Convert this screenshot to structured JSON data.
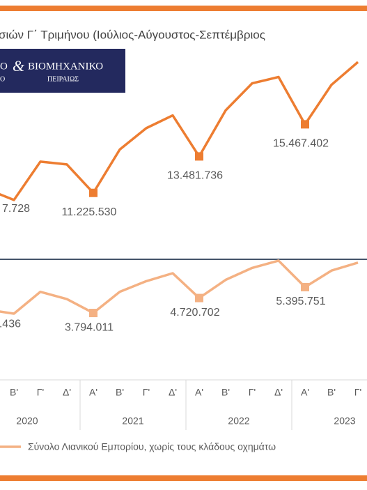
{
  "chart_data": {
    "type": "line",
    "title": "σιών Γ΄ Τριμήνου (Ιούλιος-Αύγουστος-Σεπτέμβριος",
    "logo": {
      "left1": "Ο",
      "amp": "&",
      "right1": "ΒΙΟΜΗΧΑΝΙΚΟ",
      "left2": "Ο",
      "right2": "ΠΕΙΡΑΙΩΣ"
    },
    "categories": [
      null,
      "Β'",
      "Γ'",
      "Δ'",
      "Α'",
      "Β'",
      "Γ'",
      "Δ'",
      "Α'",
      "Β'",
      "Γ'",
      "Δ'",
      "Α'",
      "Β'",
      "Γ'"
    ],
    "year_groups": [
      "2020",
      "2021",
      "2022",
      "2023"
    ],
    "series": [
      {
        "color": "#ed7d31",
        "values": [
          11447728,
          10785530,
          13161530,
          12985530,
          11225530,
          13909530,
          15229530,
          16021530,
          13481736,
          16329530,
          18001530,
          18397530,
          15467402,
          17913530,
          19321530
        ],
        "value_labels": [
          "7.728",
          null,
          null,
          null,
          "11.225.530",
          null,
          null,
          null,
          "13.481.736",
          null,
          null,
          null,
          "15.467.402",
          null,
          null
        ]
      },
      {
        "name": "Σύνολο Λιανικού Εμπορίου, χωρίς τους κλάδους οχημάτω",
        "color": "#f4b183",
        "values": [
          3998436,
          3753011,
          5106011,
          4655011,
          3794011,
          5106011,
          5762011,
          6254011,
          4720702,
          5844011,
          6582011,
          7033011,
          5395751,
          6418011,
          6910011
        ],
        "value_labels": [
          ".436",
          null,
          null,
          null,
          "3.794.011",
          null,
          null,
          null,
          "4.720.702",
          null,
          null,
          null,
          "5.395.751",
          null,
          null
        ]
      }
    ]
  }
}
